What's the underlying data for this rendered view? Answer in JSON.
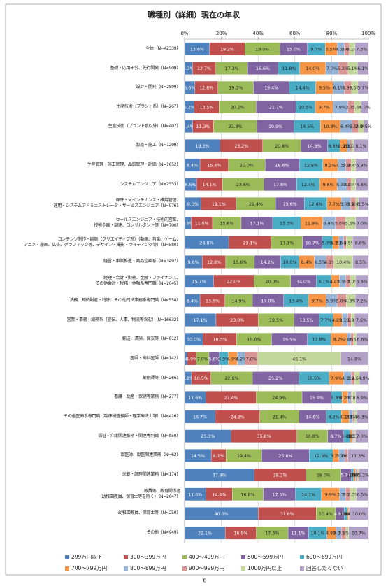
{
  "chart_data": {
    "type": "stacked_barh",
    "title": "職種別（詳細）現在の年収",
    "categories": [
      "全体（N=42339）",
      "基礎・応用研究、先行開発（N=909）",
      "設計・開発（N=2899）",
      "生産技術（プラント系）（N=267）",
      "生産技術（プラント系以外）（N=407）",
      "製造・施工（N=1209）",
      "生産管理・施工管理、品質管理・評価（N=1652）",
      "システムエンジニア（N=2533）",
      "保守・メインテナンス・維持管理、\n運用・システムアドミニストレータ・サービスエンジニア（N=976）",
      "セールスエンジニア・技術的営業、\n技術企画・調達、コンサルタント等（N=700）",
      "コンテンツ制作・編集（クリエイティブ系）（動画、音楽、ゲーム、\nアニメ・漫画、広告、グラフィック等、デザイン・撮影・ライティング等）（N=580）",
      "経営・事業推進・商品企画系（N=3497）",
      "経理・会計・財務、金融・ファイナンス、\nその他会計・税務・金融系専門職（N=2645）",
      "法務、知的財産・特許、その他司法業務系専門職（N=558）",
      "営業・事務・総務系（宣伝、人事、物流等含む）（N=16632）",
      "輸送、清掃、保安等（N=812）",
      "医師・歯科医師（N=142）",
      "薬剤師等（N=266）",
      "看護・助産・保健等業務（N=277）",
      "その他医療系専門職（臨床検査技師・理学療法士等）（N=426）",
      "福祉・介護関連業務・関連専門職（N=850）",
      "獣医師、獣医関連業務（N=62）",
      "栄養・調理関連業務（N=174）",
      "教員等、教育関係者\n（幼稚園教員、保育士等を除く）（N=2647）",
      "幼稚園教員、保育士等（N=250）",
      "その他（N=949）"
    ],
    "series": [
      {
        "name": "299万円以下",
        "color": "#4f81bd",
        "values": [
          13.6,
          4.3,
          5.6,
          5.2,
          4.4,
          19.3,
          8.4,
          6.5,
          9.0,
          3.6,
          24.0,
          9.6,
          15.7,
          8.4,
          17.1,
          10.0,
          1.4,
          3.8,
          11.6,
          16.7,
          25.3,
          14.5,
          37.9,
          11.6,
          40.0,
          22.1
        ],
        "value_labels": [
          "13.6%",
          "4.3%",
          "5.6%",
          "5.2%",
          "4.4%",
          "19.3%",
          "8.4%",
          "6.5%",
          "9.0%",
          "3.6%",
          "24.0%",
          "9.6%",
          "15.7%",
          "8.4%",
          "17.1%",
          "10.0%",
          "1.4%",
          "3.8%",
          "11.6%",
          "16.7%",
          "25.3%",
          "14.5%",
          "37.9%",
          "11.6%",
          "40.0%",
          "22.1%"
        ]
      },
      {
        "name": "300～399万円",
        "color": "#c0504d",
        "values": [
          19.2,
          12.7,
          12.6,
          13.5,
          11.3,
          23.2,
          15.4,
          14.1,
          19.1,
          11.6,
          23.1,
          12.8,
          22.0,
          13.6,
          23.0,
          18.3,
          4.9,
          10.5,
          27.4,
          24.2,
          35.8,
          8.1,
          28.2,
          14.4,
          31.6,
          16.9
        ],
        "value_labels": [
          "19.2%",
          "12.7%",
          "12.6%",
          "13.5%",
          "11.3%",
          "23.2%",
          "15.4%",
          "14.1%",
          "19.1%",
          "11.6%",
          "23.1%",
          "12.8%",
          "22.0%",
          "13.6%",
          "23.0%",
          "18.3%",
          "4.9%",
          "10.5%",
          "27.4%",
          "24.2%",
          "35.8%",
          "8.1%",
          "28.2%",
          "14.4%",
          "31.6%",
          "16.9%"
        ]
      },
      {
        "name": "400～499万円",
        "color": "#9bbb59",
        "values": [
          19.0,
          17.3,
          19.3,
          20.2,
          23.8,
          20.8,
          20.0,
          22.6,
          21.4,
          15.6,
          17.1,
          15.6,
          20.0,
          14.9,
          19.5,
          19.0,
          7.0,
          22.6,
          24.9,
          21.4,
          16.8,
          19.4,
          19.0,
          16.8,
          10.4,
          17.3
        ],
        "value_labels": [
          "19.0%",
          "17.3%",
          "19.3%",
          "20.2%",
          "23.8%",
          "20.8%",
          "20.0%",
          "22.6%",
          "21.4%",
          "15.6%",
          "17.1%",
          "15.6%",
          "20.0%",
          "14.9%",
          "19.5%",
          "19.0%",
          "7.0%",
          "22.6%",
          "24.9%",
          "21.4%",
          "16.8%",
          "19.4%",
          "19.0%",
          "16.8%",
          "10.4%",
          "17.3%"
        ]
      },
      {
        "name": "500～599万円",
        "color": "#8064a2",
        "values": [
          15.0,
          16.6,
          19.4,
          21.7,
          19.9,
          14.6,
          18.6,
          17.8,
          15.6,
          17.1,
          10.7,
          14.2,
          14.0,
          17.0,
          13.5,
          19.5,
          5.6,
          25.2,
          15.9,
          14.8,
          8.7,
          25.8,
          5.7,
          17.5,
          4.8,
          11.1
        ],
        "value_labels": [
          "15.0%",
          "16.6%",
          "19.4%",
          "21.7%",
          "19.9%",
          "14.6%",
          "18.6%",
          "17.8%",
          "15.6%",
          "17.1%",
          "10.7%",
          "14.2%",
          "14.0%",
          "17.0%",
          "13.5%",
          "19.5%",
          "5.6%",
          "25.2%",
          "15.9%",
          "14.8%",
          "8.7%",
          "25.8%",
          "5.7%",
          "17.5%",
          "4.8%",
          "11.1%"
        ]
      },
      {
        "name": "600～699万円",
        "color": "#4bacc6",
        "values": [
          9.7,
          11.8,
          14.4,
          10.5,
          14.5,
          6.6,
          12.8,
          12.4,
          12.4,
          15.3,
          5.7,
          10.0,
          8.1,
          13.4,
          7.7,
          12.8,
          4.9,
          16.5,
          5.8,
          8.2,
          3.4,
          12.9,
          1.1,
          14.1,
          1.6,
          10.1
        ],
        "value_labels": [
          "9.7%",
          "11.8%",
          "14.4%",
          "10.5%",
          "14.5%",
          "6.6%",
          "12.8%",
          "12.4%",
          "12.4%",
          "15.3%",
          "5.7%",
          "10.0%",
          "8.1%",
          "13.4%",
          "7.7%",
          "12.8%",
          "4.9%",
          "16.5%",
          "5.8%",
          "8.2%",
          "3.4%",
          "12.9%",
          "1.1%",
          "14.1%",
          "1.6%",
          "10.1%"
        ]
      },
      {
        "name": "700～799万円",
        "color": "#f79646",
        "values": [
          6.5,
          14.0,
          9.5,
          9.7,
          10.8,
          3.9,
          8.2,
          9.6,
          7.7,
          11.9,
          3.3,
          8.4,
          4.4,
          9.7,
          4.8,
          8.7,
          4.9,
          7.9,
          3.2,
          4.2,
          1.3,
          3.2,
          1.1,
          9.9,
          0.8,
          4.8
        ],
        "value_labels": [
          "6.5%",
          "14.0%",
          "9.5%",
          "9.7%",
          "10.8%",
          "3.9%",
          "8.2%",
          "9.6%",
          "7.7%",
          "11.9%",
          "3.3%",
          "8.4%",
          "4.4%",
          "9.7%",
          "4.8%",
          "8.7%",
          "4.9%",
          "7.9%",
          "3.2%",
          "4.2%",
          "1.3%",
          "3.2%",
          "1.1%",
          "9.9%",
          "0.8%",
          "4.8%"
        ]
      },
      {
        "name": "800～899万円",
        "color": "#95b3d7",
        "values": [
          4.0,
          7.0,
          6.1,
          7.9,
          6.4,
          1.5,
          4.3,
          5.3,
          5.0,
          6.9,
          2.6,
          6.5,
          3.5,
          5.9,
          3.1,
          2.1,
          4.2,
          4.1,
          1.8,
          2.1,
          0.6,
          3.2,
          0.6,
          3.3,
          0.4,
          3.0
        ],
        "value_labels": [
          "4.0%",
          "7.0%",
          "6.1%",
          "7.9%",
          "6.4%",
          "1.5%",
          "4.3%",
          "5.3%",
          "5.0%",
          "6.9%",
          "2.6%",
          "6.5%",
          "3.5%",
          "5.9%",
          "3.1%",
          "2.1%",
          "4.2%",
          "4.1%",
          "1.8%",
          "2.1%",
          "0.6%",
          "3.2%",
          "0.6%",
          "3.3%",
          "0.4%",
          "3.0%"
        ]
      },
      {
        "name": "900～999万円",
        "color": "#d99694",
        "values": [
          2.6,
          5.2,
          3.9,
          3.7,
          3.5,
          1.0,
          2.9,
          2.4,
          2.9,
          5.6,
          1.4,
          4.1,
          2.3,
          5.0,
          1.9,
          1.5,
          7.0,
          1.9,
          0.7,
          0.7,
          0.5,
          1.6,
          0.6,
          2.5,
          0.4,
          2.5
        ],
        "value_labels": [
          "2.6%",
          "5.2%",
          "3.9%",
          "3.7%",
          "3.5%",
          "1.0%",
          "2.9%",
          "2.4%",
          "2.9%",
          "5.6%",
          "1.4%",
          "4.1%",
          "2.3%",
          "5.0%",
          "1.9%",
          "1.5%",
          "7.0%",
          "1.9%",
          "0.7%",
          "0.7%",
          "0.5%",
          "1.6%",
          "0.6%",
          "2.5%",
          "0.4%",
          "2.5%"
        ]
      },
      {
        "name": "1000万円以上",
        "color": "#c3d69b",
        "values": [
          3.1,
          5.1,
          3.5,
          3.6,
          2.9,
          1.0,
          2.4,
          2.4,
          1.4,
          5.5,
          3.5,
          10.4,
          3.0,
          4.9,
          1.8,
          1.5,
          45.1,
          2.6,
          1.8,
          1.4,
          0.6,
          0.0,
          0.6,
          3.3,
          0.0,
          1.5
        ],
        "value_labels": [
          "3.1%",
          "5.1%",
          "3.5%",
          "3.6%",
          "2.9%",
          "1.0%",
          "2.4%",
          "2.4%",
          "1.4%",
          "5.5%",
          "3.5%",
          "10.4%",
          "3.0%",
          "4.9%",
          "1.8%",
          "1.5%",
          "45.1%",
          "2.6%",
          "1.8%",
          "1.4%",
          "0.6%",
          "0.0%",
          "0.6%",
          "3.3%",
          "0.0%",
          "1.5%"
        ]
      },
      {
        "name": "回答したくない",
        "color": "#b3a2c7",
        "values": [
          7.3,
          6.1,
          5.7,
          4.0,
          2.5,
          8.1,
          6.9,
          6.8,
          5.5,
          7.0,
          8.6,
          8.5,
          6.9,
          7.2,
          7.6,
          6.6,
          14.8,
          4.9,
          6.9,
          6.3,
          7.0,
          11.3,
          5.2,
          6.5,
          10.0,
          10.7
        ],
        "value_labels": [
          "7.3%",
          "6.1%",
          "5.7%",
          "4.0%",
          "2.5%",
          "8.1%",
          "6.9%",
          "6.8%",
          "5.5%",
          "7.0%",
          "8.6%",
          "8.5%",
          "6.9%",
          "7.2%",
          "7.6%",
          "6.6%",
          "14.8%",
          "4.9%",
          "6.9%",
          "6.3%",
          "7.0%",
          "11.3%",
          "5.2%",
          "6.5%",
          "10.0%",
          "10.7%"
        ]
      }
    ],
    "xlim": [
      0,
      100
    ],
    "xticks": [
      {
        "value": 0,
        "label": "0%"
      },
      {
        "value": 20,
        "label": "20%"
      },
      {
        "value": 40,
        "label": "40%"
      },
      {
        "value": 60,
        "label": "60%"
      },
      {
        "value": 80,
        "label": "80%"
      },
      {
        "value": 100,
        "label": "100%"
      }
    ],
    "grid": true,
    "legend": "bottom"
  },
  "page_number": "6"
}
